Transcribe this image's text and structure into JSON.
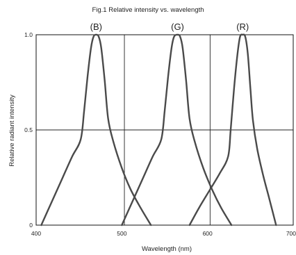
{
  "chart_data": {
    "type": "line",
    "title": "Fig.1 Relative intensity vs. wavelength",
    "xlabel": "Wavelength (nm)",
    "ylabel": "Relative radiant intensity",
    "xlim": [
      400,
      700
    ],
    "ylim": [
      0,
      1.0
    ],
    "x_ticks": [
      400,
      500,
      600,
      700
    ],
    "y_ticks": [
      0,
      0.5,
      1.0
    ],
    "x_tick_labels": [
      "400",
      "500",
      "600",
      "700"
    ],
    "y_tick_labels": [
      "0",
      "0.5",
      "1.0"
    ],
    "vertical_gridlines": [
      503,
      603
    ],
    "horizontal_gridlines": [
      0.5
    ],
    "grid": true,
    "legend": "none",
    "line_color": "#4a4a4a",
    "series": [
      {
        "label": "(B)",
        "peak_wavelength": 470,
        "x": [
          406,
          418,
          430,
          442,
          452,
          456,
          460,
          464,
          467,
          470,
          473,
          476,
          480,
          484,
          490,
          500,
          510,
          522,
          534
        ],
        "y": [
          0.0,
          0.12,
          0.24,
          0.36,
          0.45,
          0.6,
          0.78,
          0.93,
          0.99,
          1.0,
          0.99,
          0.93,
          0.76,
          0.56,
          0.44,
          0.3,
          0.19,
          0.09,
          0.0
        ]
      },
      {
        "label": "(G)",
        "peak_wavelength": 565,
        "x": [
          500,
          512,
          524,
          536,
          546,
          550,
          554,
          558,
          561,
          565,
          568,
          571,
          575,
          579,
          585,
          595,
          606,
          616,
          628
        ],
        "y": [
          0.0,
          0.12,
          0.24,
          0.36,
          0.45,
          0.6,
          0.78,
          0.93,
          0.99,
          1.0,
          0.99,
          0.93,
          0.76,
          0.56,
          0.44,
          0.3,
          0.18,
          0.09,
          0.0
        ]
      },
      {
        "label": "(R)",
        "peak_wavelength": 641,
        "x": [
          579,
          590,
          602,
          614,
          624,
          627,
          631,
          635,
          638,
          641,
          644,
          647,
          650,
          653,
          658,
          665,
          672,
          680
        ],
        "y": [
          0.0,
          0.09,
          0.18,
          0.27,
          0.36,
          0.5,
          0.72,
          0.9,
          0.99,
          1.0,
          0.99,
          0.9,
          0.72,
          0.55,
          0.4,
          0.26,
          0.14,
          0.0
        ]
      }
    ]
  }
}
